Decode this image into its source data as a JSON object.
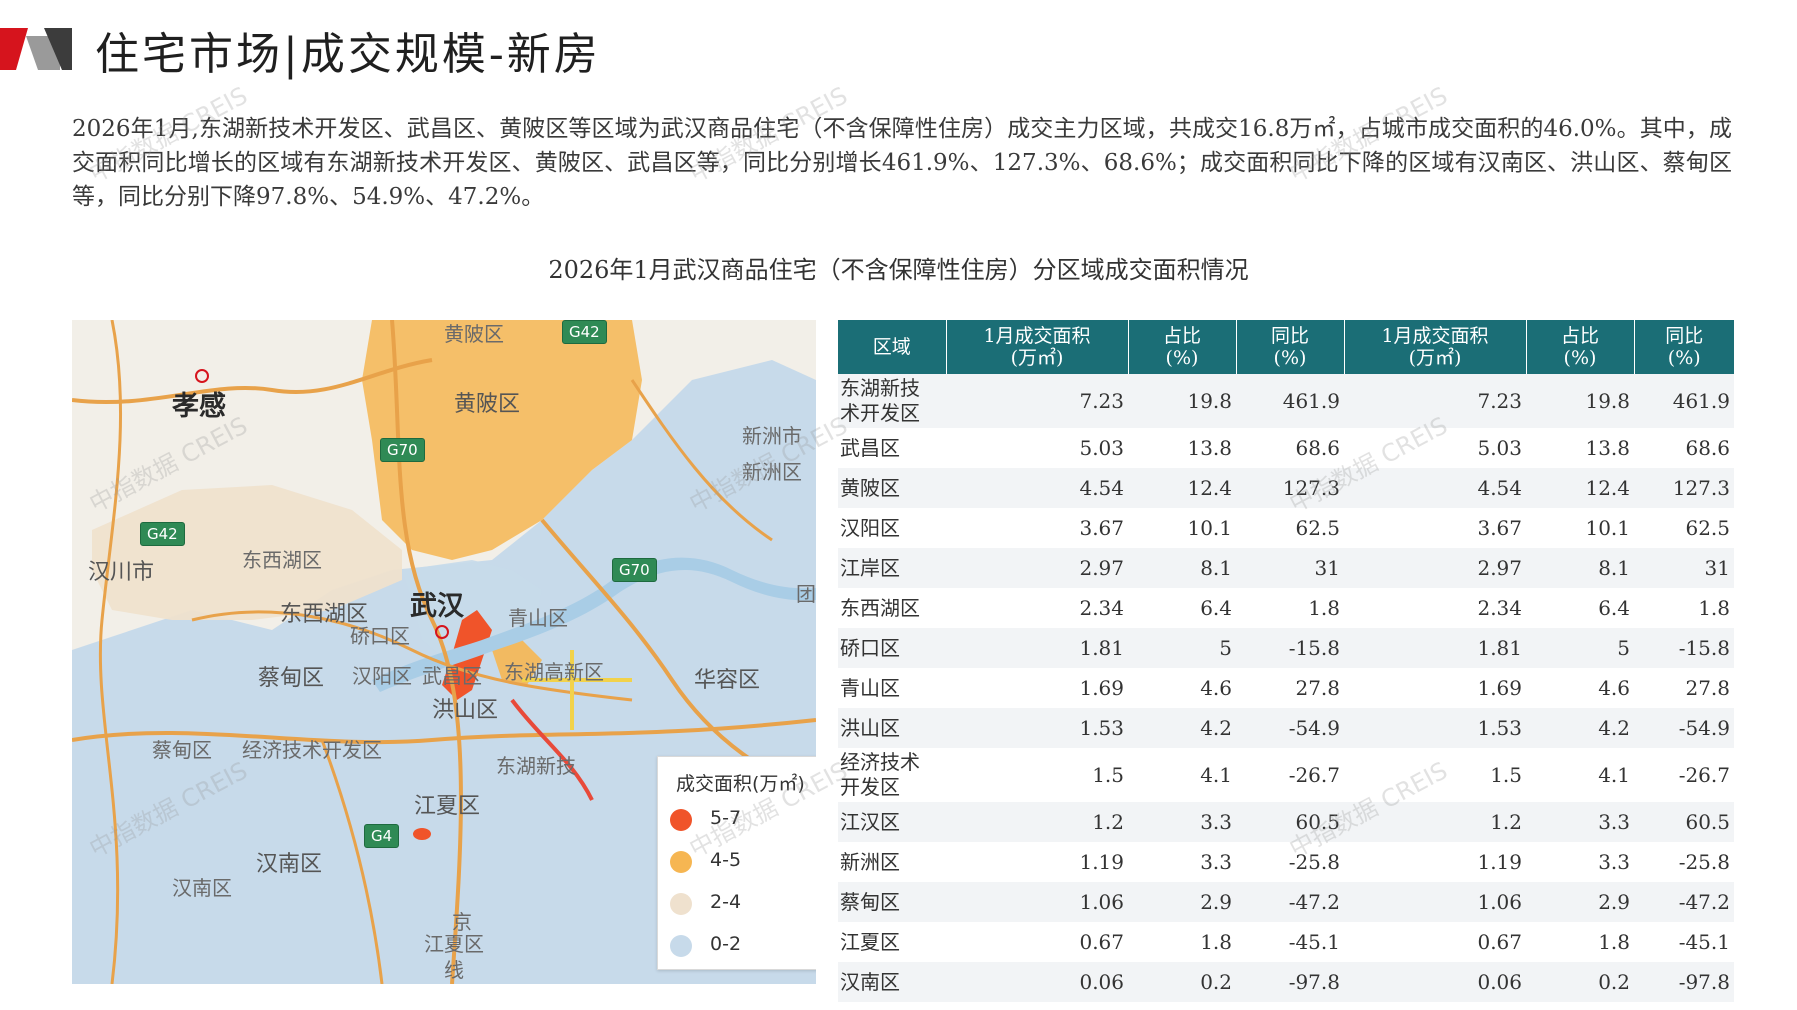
{
  "header": {
    "title": "住宅市场|成交规模-新房"
  },
  "intro": {
    "text": "2026年1月,东湖新技术开发区、武昌区、黄陂区等区域为武汉商品住宅（不含保障性住房）成交主力区域，共成交16.8万㎡，占城市成交面积的46.0%。其中，成交面积同比增长的区域有东湖新技术开发区、黄陂区、武昌区等，同比分别增长461.9%、127.3%、68.6%；成交面积同比下降的区域有汉南区、洪山区、蔡甸区等，同比分别下降97.8%、54.9%、47.2%。"
  },
  "chart": {
    "title": "2026年1月武汉商品住宅（不含保障性住房）分区域成交面积情况"
  },
  "watermark": "中指数据 CREIS",
  "map": {
    "labels": {
      "xiaogan": "孝感",
      "huangpi_top": "黄陂区",
      "huangpi": "黄陂区",
      "xinzhou": "新洲市",
      "xinzhou_qu": "新洲区",
      "hanchuan": "汉川市",
      "dongxihu_small": "东西湖区",
      "dongxihu": "东西湖区",
      "wuhan": "武汉",
      "qiaokou": "硚口区",
      "qingshan": "青山区",
      "caidian": "蔡甸区",
      "hanyang": "汉阳区",
      "wuchang": "武昌区",
      "donghu": "东湖高新区",
      "hongshan": "洪山区",
      "huarong": "华容区",
      "caidian_small": "蔡甸区",
      "jingji": "经济技术开发区",
      "donghu_new": "东湖新技",
      "jiangxia": "江夏区",
      "hannan": "汉南区",
      "hannan_small": "汉南区",
      "jing": "京",
      "jiangxia_small": "江夏区",
      "xian": "线",
      "tuan": "团"
    },
    "roads": {
      "g42_top": "G42",
      "g70_a": "G70",
      "g42_left": "G42",
      "g70_b": "G70",
      "g4": "G4"
    }
  },
  "legend": {
    "title": "成交面积(万㎡)",
    "items": [
      {
        "label": "5-7",
        "color": "#f0542a"
      },
      {
        "label": "4-5",
        "color": "#f6b652"
      },
      {
        "label": "2-4",
        "color": "#efe1ce"
      },
      {
        "label": "0-2",
        "color": "#c7daea"
      }
    ]
  },
  "table": {
    "headers": [
      "区域",
      "1月成交面积\n(万㎡)",
      "占比\n(%)",
      "同比\n(%)",
      "1月成交面积\n(万㎡)",
      "占比\n(%)",
      "同比\n(%)"
    ],
    "rows": [
      {
        "name": "东湖新技\n术开发区",
        "area": "7.23",
        "share": "19.8",
        "yoy": "461.9",
        "area2": "7.23",
        "share2": "19.8",
        "yoy2": "461.9"
      },
      {
        "name": "武昌区",
        "area": "5.03",
        "share": "13.8",
        "yoy": "68.6",
        "area2": "5.03",
        "share2": "13.8",
        "yoy2": "68.6"
      },
      {
        "name": "黄陂区",
        "area": "4.54",
        "share": "12.4",
        "yoy": "127.3",
        "area2": "4.54",
        "share2": "12.4",
        "yoy2": "127.3"
      },
      {
        "name": "汉阳区",
        "area": "3.67",
        "share": "10.1",
        "yoy": "62.5",
        "area2": "3.67",
        "share2": "10.1",
        "yoy2": "62.5"
      },
      {
        "name": "江岸区",
        "area": "2.97",
        "share": "8.1",
        "yoy": "31",
        "area2": "2.97",
        "share2": "8.1",
        "yoy2": "31"
      },
      {
        "name": "东西湖区",
        "area": "2.34",
        "share": "6.4",
        "yoy": "1.8",
        "area2": "2.34",
        "share2": "6.4",
        "yoy2": "1.8"
      },
      {
        "name": "硚口区",
        "area": "1.81",
        "share": "5",
        "yoy": "-15.8",
        "area2": "1.81",
        "share2": "5",
        "yoy2": "-15.8"
      },
      {
        "name": "青山区",
        "area": "1.69",
        "share": "4.6",
        "yoy": "27.8",
        "area2": "1.69",
        "share2": "4.6",
        "yoy2": "27.8"
      },
      {
        "name": "洪山区",
        "area": "1.53",
        "share": "4.2",
        "yoy": "-54.9",
        "area2": "1.53",
        "share2": "4.2",
        "yoy2": "-54.9"
      },
      {
        "name": "经济技术\n开发区",
        "area": "1.5",
        "share": "4.1",
        "yoy": "-26.7",
        "area2": "1.5",
        "share2": "4.1",
        "yoy2": "-26.7"
      },
      {
        "name": "江汉区",
        "area": "1.2",
        "share": "3.3",
        "yoy": "60.5",
        "area2": "1.2",
        "share2": "3.3",
        "yoy2": "60.5"
      },
      {
        "name": "新洲区",
        "area": "1.19",
        "share": "3.3",
        "yoy": "-25.8",
        "area2": "1.19",
        "share2": "3.3",
        "yoy2": "-25.8"
      },
      {
        "name": "蔡甸区",
        "area": "1.06",
        "share": "2.9",
        "yoy": "-47.2",
        "area2": "1.06",
        "share2": "2.9",
        "yoy2": "-47.2"
      },
      {
        "name": "江夏区",
        "area": "0.67",
        "share": "1.8",
        "yoy": "-45.1",
        "area2": "0.67",
        "share2": "1.8",
        "yoy2": "-45.1"
      },
      {
        "name": "汉南区",
        "area": "0.06",
        "share": "0.2",
        "yoy": "-97.8",
        "area2": "0.06",
        "share2": "0.2",
        "yoy2": "-97.8"
      }
    ]
  }
}
